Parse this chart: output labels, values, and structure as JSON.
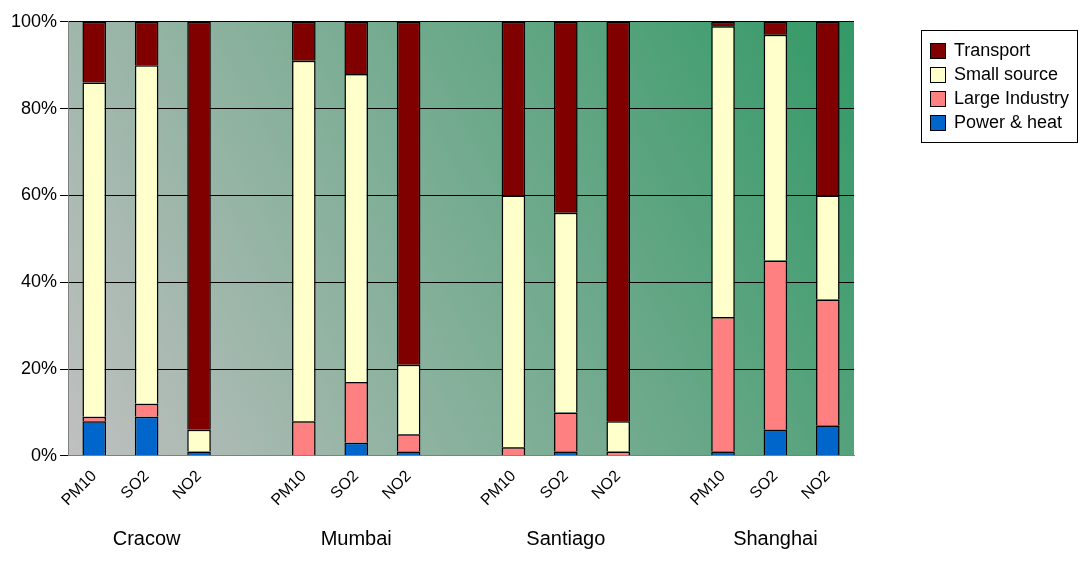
{
  "chart_data": {
    "type": "bar",
    "stacked": true,
    "categories": [
      "PM10",
      "SO2",
      "NO2",
      null,
      "PM10",
      "SO2",
      "NO2",
      null,
      "PM10",
      "SO2",
      "NO2",
      null,
      "PM10",
      "SO2",
      "NO2"
    ],
    "series": [
      {
        "name": "Power & heat",
        "color": "#0066cc",
        "values": [
          8,
          9,
          1,
          null,
          0,
          3,
          1,
          null,
          0,
          1,
          0,
          null,
          1,
          6,
          7
        ]
      },
      {
        "name": "Large Industry",
        "color": "#ff8080",
        "values": [
          1,
          3,
          0,
          null,
          8,
          14,
          4,
          null,
          2,
          9,
          1,
          null,
          31,
          39,
          29
        ]
      },
      {
        "name": "Small source",
        "color": "#ffffcc",
        "values": [
          77,
          78,
          5,
          null,
          83,
          71,
          16,
          null,
          58,
          46,
          7,
          null,
          67,
          52,
          24
        ]
      },
      {
        "name": "Transport",
        "color": "#800000",
        "values": [
          14,
          10,
          94,
          null,
          9,
          12,
          79,
          null,
          40,
          44,
          92,
          null,
          1,
          3,
          40
        ]
      }
    ],
    "ylim": [
      0,
      100
    ],
    "yticks": [
      {
        "value": 0,
        "label": "0%"
      },
      {
        "value": 20,
        "label": "20%"
      },
      {
        "value": 40,
        "label": "40%"
      },
      {
        "value": 60,
        "label": "60%"
      },
      {
        "value": 80,
        "label": "80%"
      },
      {
        "value": 100,
        "label": "100%"
      }
    ],
    "grid": "y",
    "legend": "top right",
    "annotations": [
      "Cracow",
      "Mumbai",
      "Santiago",
      "Shanghai"
    ]
  }
}
